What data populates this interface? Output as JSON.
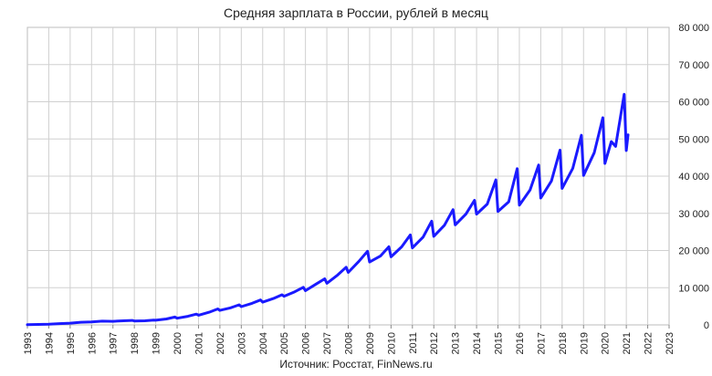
{
  "chart_data": {
    "type": "line",
    "title": "Средняя зарплата в России, рублей в месяц",
    "source": "Источник: Росстат, FinNews.ru",
    "x_range": [
      1993,
      2023
    ],
    "y_range": [
      0,
      80000
    ],
    "grid": true,
    "y_axis_position": "right",
    "x_ticks": [
      "1993",
      "1994",
      "1995",
      "1996",
      "1997",
      "1998",
      "1999",
      "2000",
      "2001",
      "2002",
      "2003",
      "2004",
      "2005",
      "2006",
      "2007",
      "2008",
      "2009",
      "2010",
      "2011",
      "2012",
      "2013",
      "2014",
      "2015",
      "2016",
      "2017",
      "2018",
      "2019",
      "2020",
      "2021",
      "2022",
      "2023"
    ],
    "y_ticks": [
      "0",
      "10 000",
      "20 000",
      "30 000",
      "40 000",
      "50 000",
      "60 000",
      "70 000",
      "80 000"
    ],
    "series": [
      {
        "color": "#1a1aff",
        "x": [
          1993.0,
          1993.5,
          1994.0,
          1994.5,
          1995.0,
          1995.5,
          1996.0,
          1996.5,
          1997.0,
          1997.5,
          1997.9,
          1998.0,
          1998.5,
          1998.9,
          1999.0,
          1999.5,
          1999.9,
          2000.0,
          2000.5,
          2000.9,
          2001.0,
          2001.5,
          2001.9,
          2002.0,
          2002.5,
          2002.9,
          2003.0,
          2003.5,
          2003.9,
          2004.0,
          2004.5,
          2004.9,
          2005.0,
          2005.5,
          2005.9,
          2006.0,
          2006.5,
          2006.9,
          2007.0,
          2007.5,
          2007.9,
          2008.0,
          2008.5,
          2008.9,
          2009.0,
          2009.5,
          2009.9,
          2010.0,
          2010.5,
          2010.9,
          2011.0,
          2011.5,
          2011.9,
          2012.0,
          2012.5,
          2012.9,
          2013.0,
          2013.5,
          2013.9,
          2014.0,
          2014.5,
          2014.9,
          2015.0,
          2015.5,
          2015.9,
          2016.0,
          2016.5,
          2016.9,
          2017.0,
          2017.5,
          2017.9,
          2018.0,
          2018.5,
          2018.9,
          2019.0,
          2019.5,
          2019.9,
          2020.0,
          2020.3,
          2020.5,
          2020.9,
          2021.0,
          2021.08
        ],
        "y": [
          60,
          120,
          200,
          350,
          470,
          700,
          800,
          1000,
          950,
          1100,
          1200,
          1050,
          1100,
          1300,
          1250,
          1600,
          2100,
          1800,
          2300,
          2900,
          2600,
          3400,
          4300,
          3900,
          4600,
          5400,
          4900,
          5800,
          6700,
          6100,
          7100,
          8100,
          7700,
          8900,
          10100,
          9200,
          11000,
          12400,
          11200,
          13400,
          15500,
          14100,
          17100,
          19800,
          16900,
          18500,
          21000,
          18300,
          21000,
          24200,
          20700,
          23600,
          27900,
          23800,
          26800,
          31000,
          26900,
          29800,
          33500,
          29800,
          32500,
          39000,
          30500,
          33100,
          42000,
          32200,
          36300,
          43000,
          34100,
          38700,
          47000,
          36700,
          42100,
          51000,
          40200,
          46300,
          55700,
          43400,
          49300,
          48000,
          62000,
          46900,
          51100
        ]
      }
    ]
  }
}
